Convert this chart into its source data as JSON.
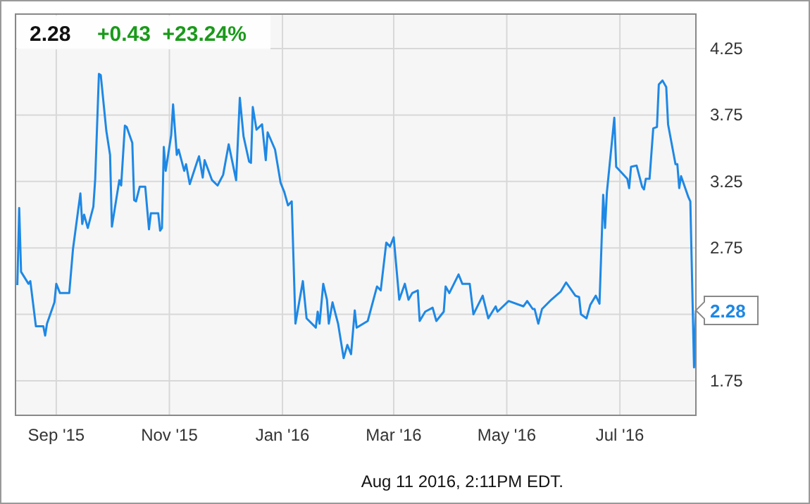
{
  "chart_data": {
    "type": "line",
    "title": "2.28",
    "subtitle": "+0.43  +23.24%",
    "annotations": [
      {
        "text": "2.28",
        "x": "2016-08-11",
        "y": 2.28
      },
      "Aug 11 2016, 2:11PM EDT."
    ],
    "xlim": [
      "2015-08-10",
      "2016-08-11"
    ],
    "ylim": [
      1.49,
      4.51
    ],
    "xticks": [
      {
        "value": "2015-09-01",
        "label": "Sep '15"
      },
      {
        "value": "2015-11-01",
        "label": "Nov '15"
      },
      {
        "value": "2016-01-01",
        "label": "Jan '16"
      },
      {
        "value": "2016-03-01",
        "label": "Mar '16"
      },
      {
        "value": "2016-05-01",
        "label": "May '16"
      },
      {
        "value": "2016-07-01",
        "label": "Jul '16"
      }
    ],
    "yticks": [
      1.75,
      {
        "value": 2.25,
        "label": null
      },
      2.75,
      3.25,
      3.75,
      4.25
    ],
    "grid": true,
    "marker": "none",
    "line_style": "solid",
    "x": [
      "2015-08-11",
      "2015-08-12",
      "2015-08-13",
      "2015-08-17",
      "2015-08-18",
      "2015-08-21",
      "2015-08-25",
      "2015-08-26",
      "2015-08-27",
      "2015-08-31",
      "2015-09-01",
      "2015-09-03",
      "2015-09-08",
      "2015-09-10",
      "2015-09-14",
      "2015-09-15",
      "2015-09-16",
      "2015-09-18",
      "2015-09-21",
      "2015-09-22",
      "2015-09-24",
      "2015-09-25",
      "2015-09-28",
      "2015-09-30",
      "2015-10-01",
      "2015-10-05",
      "2015-10-06",
      "2015-10-08",
      "2015-10-09",
      "2015-10-12",
      "2015-10-13",
      "2015-10-14",
      "2015-10-16",
      "2015-10-19",
      "2015-10-21",
      "2015-10-22",
      "2015-10-26",
      "2015-10-27",
      "2015-10-28",
      "2015-10-29",
      "2015-10-30",
      "2015-11-02",
      "2015-11-03",
      "2015-11-05",
      "2015-11-06",
      "2015-11-09",
      "2015-11-10",
      "2015-11-12",
      "2015-11-16",
      "2015-11-17",
      "2015-11-19",
      "2015-11-20",
      "2015-11-24",
      "2015-11-27",
      "2015-11-30",
      "2015-12-03",
      "2015-12-07",
      "2015-12-09",
      "2015-12-11",
      "2015-12-14",
      "2015-12-15",
      "2015-12-16",
      "2015-12-18",
      "2015-12-21",
      "2015-12-23",
      "2015-12-24",
      "2015-12-28",
      "2015-12-31",
      "2016-01-02",
      "2016-01-04",
      "2016-01-06",
      "2016-01-08",
      "2016-01-12",
      "2016-01-14",
      "2016-01-19",
      "2016-01-20",
      "2016-01-21",
      "2016-01-23",
      "2016-01-25",
      "2016-01-26",
      "2016-01-28",
      "2016-01-31",
      "2016-02-03",
      "2016-02-05",
      "2016-02-07",
      "2016-02-09",
      "2016-02-10",
      "2016-02-16",
      "2016-02-21",
      "2016-02-23",
      "2016-02-26",
      "2016-02-28",
      "2016-03-01",
      "2016-03-04",
      "2016-03-07",
      "2016-03-09",
      "2016-03-11",
      "2016-03-14",
      "2016-03-15",
      "2016-03-18",
      "2016-03-22",
      "2016-03-24",
      "2016-03-28",
      "2016-03-29",
      "2016-03-31",
      "2016-04-05",
      "2016-04-07",
      "2016-04-11",
      "2016-04-13",
      "2016-04-18",
      "2016-04-21",
      "2016-04-25",
      "2016-04-26",
      "2016-05-02",
      "2016-05-10",
      "2016-05-12",
      "2016-05-15",
      "2016-05-16",
      "2016-05-18",
      "2016-05-20",
      "2016-05-25",
      "2016-05-30",
      "2016-06-02",
      "2016-06-07",
      "2016-06-09",
      "2016-06-10",
      "2016-06-13",
      "2016-06-15",
      "2016-06-18",
      "2016-06-20",
      "2016-06-22",
      "2016-06-23",
      "2016-06-24",
      "2016-06-28",
      "2016-06-29",
      "2016-07-05",
      "2016-07-06",
      "2016-07-07",
      "2016-07-10",
      "2016-07-13",
      "2016-07-14",
      "2016-07-15",
      "2016-07-17",
      "2016-07-19",
      "2016-07-21",
      "2016-07-22",
      "2016-07-24",
      "2016-07-26",
      "2016-07-27",
      "2016-07-31",
      "2016-08-01",
      "2016-08-02",
      "2016-08-03",
      "2016-08-07",
      "2016-08-08",
      "2016-08-10",
      "2016-08-11"
    ],
    "series": [
      {
        "color": "#1e88e5",
        "values": [
          2.47,
          3.05,
          2.57,
          2.48,
          2.5,
          2.16,
          2.16,
          2.09,
          2.18,
          2.34,
          2.48,
          2.41,
          2.41,
          2.74,
          3.16,
          2.93,
          3.0,
          2.9,
          3.06,
          3.27,
          4.06,
          4.05,
          3.63,
          3.45,
          2.91,
          3.26,
          3.22,
          3.67,
          3.66,
          3.54,
          3.11,
          3.1,
          3.21,
          3.21,
          2.89,
          3.01,
          3.01,
          2.88,
          2.9,
          3.51,
          3.33,
          3.6,
          3.83,
          3.45,
          3.49,
          3.33,
          3.38,
          3.23,
          3.4,
          3.44,
          3.28,
          3.41,
          3.26,
          3.22,
          3.3,
          3.53,
          3.26,
          3.88,
          3.59,
          3.4,
          3.39,
          3.81,
          3.64,
          3.68,
          3.41,
          3.62,
          3.49,
          3.24,
          3.17,
          3.07,
          3.1,
          2.18,
          2.5,
          2.22,
          2.15,
          2.27,
          2.18,
          2.48,
          2.36,
          2.18,
          2.34,
          2.18,
          1.92,
          2.02,
          1.95,
          2.28,
          2.15,
          2.2,
          2.46,
          2.43,
          2.79,
          2.76,
          2.83,
          2.36,
          2.48,
          2.36,
          2.41,
          2.43,
          2.2,
          2.27,
          2.3,
          2.2,
          2.27,
          2.46,
          2.41,
          2.55,
          2.48,
          2.48,
          2.25,
          2.39,
          2.22,
          2.31,
          2.27,
          2.35,
          2.31,
          2.35,
          2.29,
          2.29,
          2.18,
          2.29,
          2.36,
          2.42,
          2.49,
          2.39,
          2.38,
          2.25,
          2.22,
          2.32,
          2.39,
          2.33,
          3.15,
          2.9,
          3.17,
          3.73,
          3.36,
          3.27,
          3.2,
          3.36,
          3.37,
          3.21,
          3.19,
          3.27,
          3.27,
          3.65,
          3.66,
          3.98,
          4.01,
          3.96,
          3.68,
          3.38,
          3.38,
          3.2,
          3.29,
          3.13,
          3.1,
          1.85,
          2.28
        ]
      }
    ]
  }
}
